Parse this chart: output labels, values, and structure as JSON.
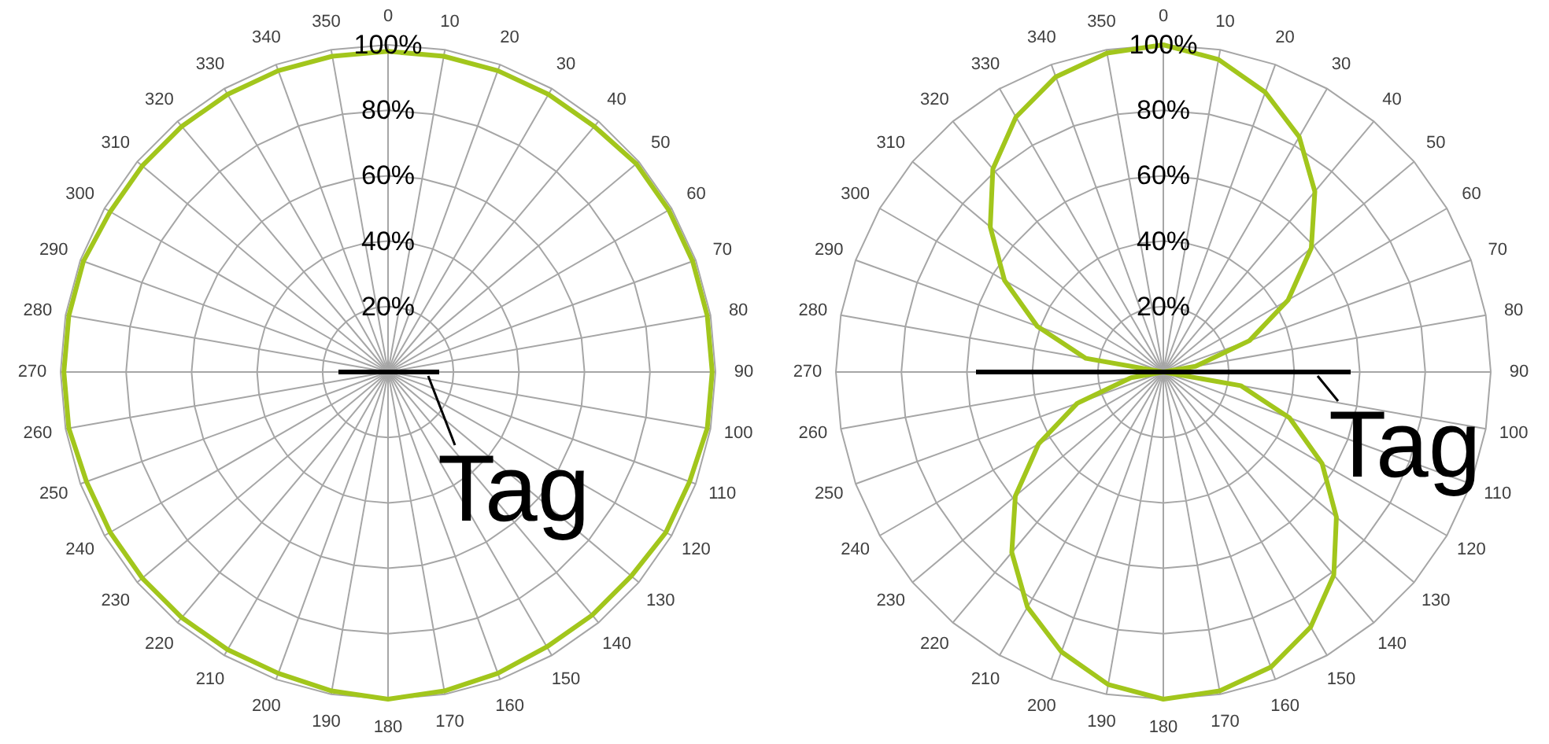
{
  "chart_data": [
    {
      "type": "radar",
      "categories": [
        "0",
        "10",
        "20",
        "30",
        "40",
        "50",
        "60",
        "70",
        "80",
        "90",
        "100",
        "110",
        "120",
        "130",
        "140",
        "150",
        "160",
        "170",
        "180",
        "190",
        "200",
        "210",
        "220",
        "230",
        "240",
        "250",
        "260",
        "270",
        "280",
        "290",
        "300",
        "310",
        "320",
        "330",
        "340",
        "350"
      ],
      "series": [
        {
          "color": "#a2c61c",
          "values": [
            98,
            98,
            98,
            98,
            98,
            99,
            99,
            99,
            99,
            99,
            99,
            98,
            98,
            97,
            97,
            97,
            98,
            99,
            100,
            99,
            98,
            98,
            98,
            98,
            98,
            98,
            99,
            99,
            99,
            99,
            98,
            98,
            98,
            98,
            98,
            98
          ]
        }
      ],
      "ylim": [
        0,
        100
      ],
      "yticks": [
        {
          "value": 20,
          "label": "20%"
        },
        {
          "value": 40,
          "label": "40%"
        },
        {
          "value": 60,
          "label": "60%"
        },
        {
          "value": 80,
          "label": "80%"
        },
        {
          "value": 100,
          "label": "100%"
        }
      ],
      "grid": true,
      "annotations": [
        "Tag"
      ]
    },
    {
      "type": "radar",
      "categories": [
        "0",
        "10",
        "20",
        "30",
        "40",
        "50",
        "60",
        "70",
        "80",
        "90",
        "100",
        "110",
        "120",
        "130",
        "140",
        "150",
        "160",
        "170",
        "180",
        "190",
        "200",
        "210",
        "220",
        "230",
        "240",
        "250",
        "260",
        "270",
        "280",
        "290",
        "300",
        "310",
        "320",
        "330",
        "340",
        "350"
      ],
      "series": [
        {
          "color": "#a2c61c",
          "values": [
            100,
            97,
            91,
            83,
            72,
            59,
            44,
            28,
            10,
            0,
            24,
            41,
            56,
            69,
            81,
            90,
            96,
            99,
            100,
            97,
            91,
            83,
            72,
            59,
            44,
            28,
            10,
            0,
            24,
            41,
            56,
            69,
            81,
            90,
            96,
            99
          ]
        }
      ],
      "ylim": [
        0,
        100
      ],
      "yticks": [
        {
          "value": 20,
          "label": "20%"
        },
        {
          "value": 40,
          "label": "40%"
        },
        {
          "value": 60,
          "label": "60%"
        },
        {
          "value": 80,
          "label": "80%"
        },
        {
          "value": 100,
          "label": "100%"
        }
      ],
      "grid": true,
      "annotations": [
        "Tag"
      ]
    }
  ]
}
